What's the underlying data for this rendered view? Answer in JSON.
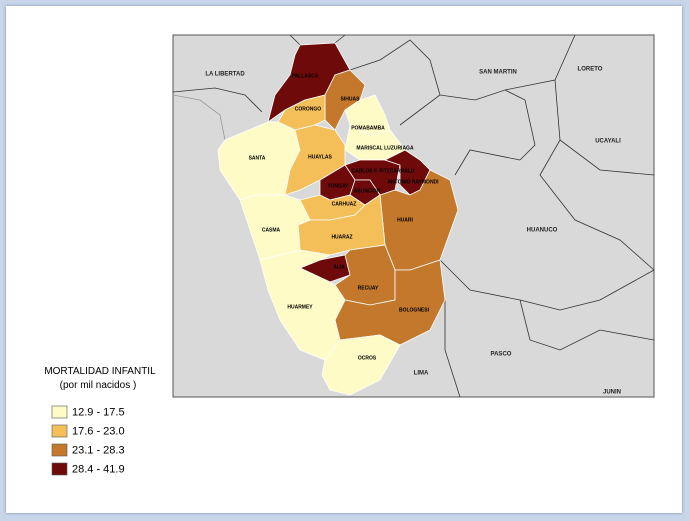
{
  "map": {
    "legend": {
      "title": "MORTALIDAD INFANTIL",
      "subtitle": "(por mil nacidos )",
      "items": [
        {
          "label": "12.9 - 17.5",
          "color": "#fffbc6"
        },
        {
          "label": "17.6 - 23.0",
          "color": "#f4bf58"
        },
        {
          "label": "23.1 - 28.3",
          "color": "#c4782c"
        },
        {
          "label": "28.4 - 41.9",
          "color": "#6e0a0a"
        }
      ]
    },
    "regions": [
      {
        "name": "PALLASCA",
        "class": 3
      },
      {
        "name": "SIHUAS",
        "class": 2
      },
      {
        "name": "CORONGO",
        "class": 1
      },
      {
        "name": "POMABAMBA",
        "class": 0
      },
      {
        "name": "SANTA",
        "class": 0
      },
      {
        "name": "HUAYLAS",
        "class": 1
      },
      {
        "name": "MARISCAL LUZURIAGA",
        "class": 0
      },
      {
        "name": "CARLOS F. FITZCARRALD",
        "class": 3
      },
      {
        "name": "ANTONIO RAYMONDI",
        "class": 3
      },
      {
        "name": "YUNGAY",
        "class": 3
      },
      {
        "name": "ASUNCION",
        "class": 3
      },
      {
        "name": "HUARI",
        "class": 2
      },
      {
        "name": "CARHUAZ",
        "class": 1
      },
      {
        "name": "HUARAZ",
        "class": 1
      },
      {
        "name": "CASMA",
        "class": 0
      },
      {
        "name": "AIJA",
        "class": 3
      },
      {
        "name": "RECUAY",
        "class": 2
      },
      {
        "name": "BOLOGNESI",
        "class": 2
      },
      {
        "name": "HUARMEY",
        "class": 0
      },
      {
        "name": "OCROS",
        "class": 0
      }
    ],
    "neighbors": [
      "LA LIBERTAD",
      "SAN MARTIN",
      "LORETO",
      "UCAYALI",
      "HUANUCO",
      "PASCO",
      "LIMA",
      "JUNIN"
    ]
  }
}
